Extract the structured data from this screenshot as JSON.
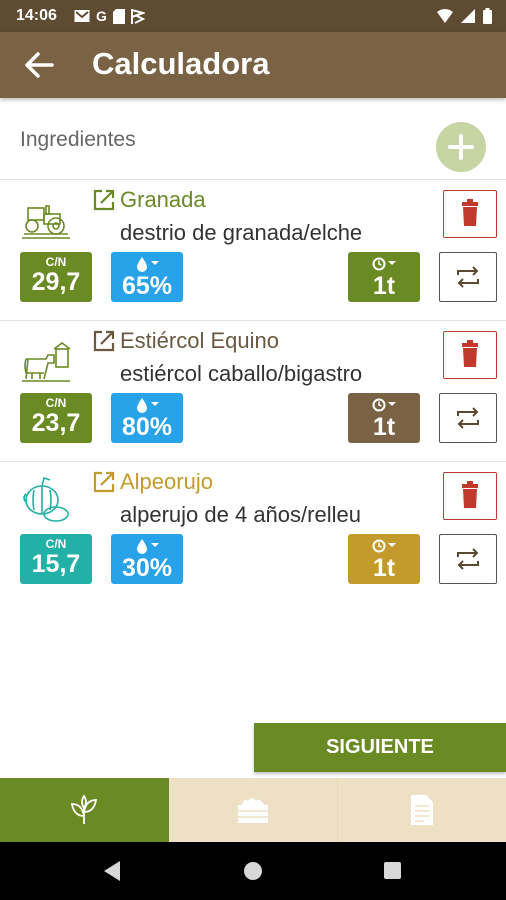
{
  "status_bar": {
    "time": "14:06",
    "left_icons": [
      "gmail-icon",
      "google-icon",
      "sim-card-icon",
      "cast-icon"
    ],
    "right_icons": [
      "wifi-icon",
      "signal-icon",
      "battery-icon"
    ]
  },
  "app_bar": {
    "title": "Calculadora",
    "back_icon": "arrow-left-icon"
  },
  "section": {
    "title": "Ingredientes",
    "add_icon": "plus-icon"
  },
  "ingredients": [
    {
      "name": "Granada",
      "description": "destrio de granada/elche",
      "icon": "tractor-icon",
      "cn_label": "C/N",
      "cn_value": "29,7",
      "humidity": "65%",
      "quantity": "1t",
      "colors": {
        "name": "#6a8a24",
        "cn_badge": "#6a8a24",
        "qty_badge": "#6a8a24",
        "icon": "#6a8a24"
      }
    },
    {
      "name": "Estiércol Equino",
      "description": "estiércol caballo/bigastro",
      "icon": "farm-animals-icon",
      "cn_label": "C/N",
      "cn_value": "23,7",
      "humidity": "80%",
      "quantity": "1t",
      "colors": {
        "name": "#6b5840",
        "cn_badge": "#6a8a24",
        "qty_badge": "#7a6244",
        "icon": "#6a8a24"
      }
    },
    {
      "name": "Alpeorujo",
      "description": "alperujo de 4 años/relleu",
      "icon": "fruit-vegetables-icon",
      "cn_label": "C/N",
      "cn_value": "15,7",
      "humidity": "30%",
      "quantity": "1t",
      "colors": {
        "name": "#c39a2c",
        "cn_badge": "#23b0a6",
        "qty_badge": "#c39a2c",
        "icon": "#23b0a6"
      }
    }
  ],
  "actions": {
    "next_label": "SIGUIENTE"
  },
  "tabs": [
    {
      "icon": "leaves-icon",
      "active": true
    },
    {
      "icon": "compost-bin-icon",
      "active": false
    },
    {
      "icon": "document-icon",
      "active": false
    }
  ],
  "nav_bar": [
    "back-triangle-icon",
    "home-circle-icon",
    "recents-square-icon"
  ],
  "theme": {
    "status_bar": "#5f4b32",
    "app_bar": "#7a6244",
    "primary_green": "#6a8a24",
    "humidity_blue": "#28a2e8",
    "delete_red": "#c0392b",
    "tab_inactive": "#ede0c5"
  }
}
